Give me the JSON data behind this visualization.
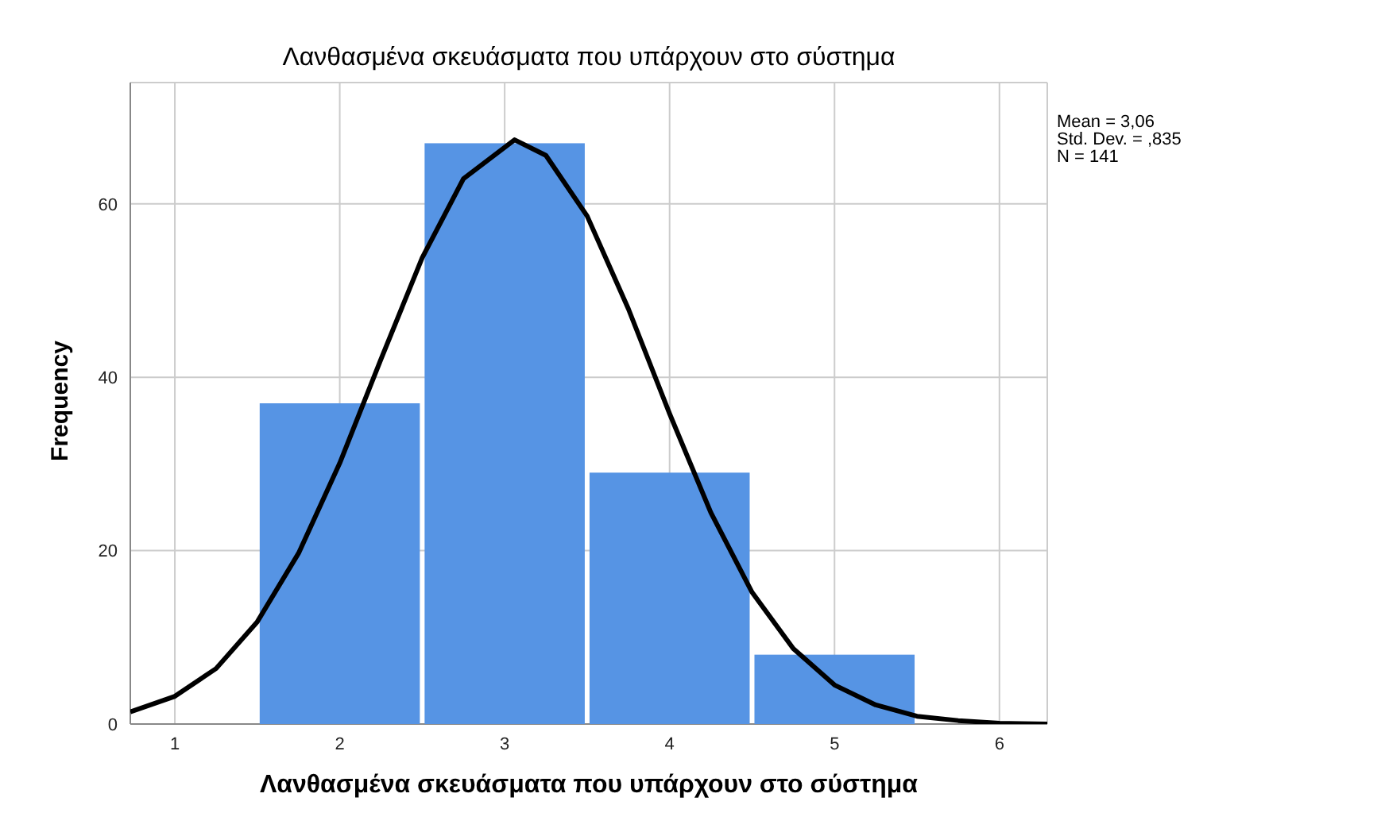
{
  "chart_data": {
    "type": "histogram",
    "title": "Λανθασμένα σκευάσματα που υπάρχουν στο σύστημα",
    "xlabel": "Λανθασμένα σκευάσματα που υπάρχουν στο σύστημα",
    "ylabel": "Frequency",
    "bins": [
      1.5,
      2.5,
      3.5,
      4.5,
      5.5
    ],
    "values": [
      37,
      67,
      29,
      8
    ],
    "color": "#5694e4",
    "series": [
      {
        "type": "line",
        "color": "#000000",
        "x": [
          0.73,
          1,
          1.25,
          1.5,
          1.75,
          2,
          2.25,
          2.5,
          2.75,
          3.06,
          3.25,
          3.5,
          3.75,
          4,
          4.25,
          4.5,
          4.75,
          5,
          5.25,
          5.5,
          5.75,
          6,
          6.29
        ],
        "values": [
          1.4,
          3.2,
          6.4,
          11.8,
          19.7,
          30.1,
          42.1,
          53.8,
          62.9,
          67.4,
          65.6,
          58.6,
          47.9,
          35.8,
          24.4,
          15.2,
          8.7,
          4.5,
          2.2,
          0.9,
          0.4,
          0.1,
          0
        ]
      }
    ],
    "xlim": [
      0.73,
      6.29
    ],
    "xticks": [
      1,
      2,
      3,
      4,
      5,
      6
    ],
    "ylim": [
      0,
      74
    ],
    "yticks": [
      0,
      20,
      40,
      60
    ],
    "grid": true,
    "legend": false,
    "annotations": [
      "Mean = 3,06",
      "Std. Dev. = ,835",
      "N = 141"
    ]
  }
}
